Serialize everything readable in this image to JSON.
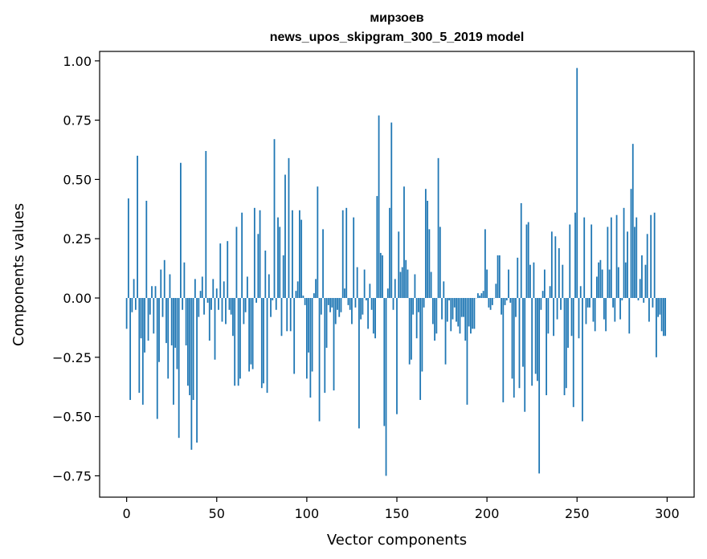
{
  "chart_data": {
    "type": "bar",
    "title": "мирзоев",
    "subtitle": "news_upos_skipgram_300_5_2019 model",
    "xlabel": "Vector components",
    "ylabel": "Components values",
    "xlim": [
      -15,
      315
    ],
    "ylim": [
      -0.84,
      1.04
    ],
    "xticks": [
      "0",
      "50",
      "100",
      "150",
      "200",
      "250",
      "300"
    ],
    "yticks": [
      "−0.75",
      "−0.50",
      "−0.25",
      "0.00",
      "0.25",
      "0.50",
      "0.75",
      "1.00"
    ],
    "grid": false,
    "bar_color": "#1f77b4",
    "x": [
      0,
      1,
      2,
      3,
      4,
      5,
      6,
      7,
      8,
      9,
      10,
      11,
      12,
      13,
      14,
      15,
      16,
      17,
      18,
      19,
      20,
      21,
      22,
      23,
      24,
      25,
      26,
      27,
      28,
      29,
      30,
      31,
      32,
      33,
      34,
      35,
      36,
      37,
      38,
      39,
      40,
      41,
      42,
      43,
      44,
      45,
      46,
      47,
      48,
      49,
      50,
      51,
      52,
      53,
      54,
      55,
      56,
      57,
      58,
      59,
      60,
      61,
      62,
      63,
      64,
      65,
      66,
      67,
      68,
      69,
      70,
      71,
      72,
      73,
      74,
      75,
      76,
      77,
      78,
      79,
      80,
      81,
      82,
      83,
      84,
      85,
      86,
      87,
      88,
      89,
      90,
      91,
      92,
      93,
      94,
      95,
      96,
      97,
      98,
      99,
      100,
      101,
      102,
      103,
      104,
      105,
      106,
      107,
      108,
      109,
      110,
      111,
      112,
      113,
      114,
      115,
      116,
      117,
      118,
      119,
      120,
      121,
      122,
      123,
      124,
      125,
      126,
      127,
      128,
      129,
      130,
      131,
      132,
      133,
      134,
      135,
      136,
      137,
      138,
      139,
      140,
      141,
      142,
      143,
      144,
      145,
      146,
      147,
      148,
      149,
      150,
      151,
      152,
      153,
      154,
      155,
      156,
      157,
      158,
      159,
      160,
      161,
      162,
      163,
      164,
      165,
      166,
      167,
      168,
      169,
      170,
      171,
      172,
      173,
      174,
      175,
      176,
      177,
      178,
      179,
      180,
      181,
      182,
      183,
      184,
      185,
      186,
      187,
      188,
      189,
      190,
      191,
      192,
      193,
      194,
      195,
      196,
      197,
      198,
      199,
      200,
      201,
      202,
      203,
      204,
      205,
      206,
      207,
      208,
      209,
      210,
      211,
      212,
      213,
      214,
      215,
      216,
      217,
      218,
      219,
      220,
      221,
      222,
      223,
      224,
      225,
      226,
      227,
      228,
      229,
      230,
      231,
      232,
      233,
      234,
      235,
      236,
      237,
      238,
      239,
      240,
      241,
      242,
      243,
      244,
      245,
      246,
      247,
      248,
      249,
      250,
      251,
      252,
      253,
      254,
      255,
      256,
      257,
      258,
      259,
      260,
      261,
      262,
      263,
      264,
      265,
      266,
      267,
      268,
      269,
      270,
      271,
      272,
      273,
      274,
      275,
      276,
      277,
      278,
      279,
      280,
      281,
      282,
      283,
      284,
      285,
      286,
      287,
      288,
      289,
      290,
      291,
      292,
      293,
      294,
      295,
      296,
      297,
      298,
      299
    ],
    "values": [
      -0.13,
      0.42,
      -0.43,
      -0.06,
      0.08,
      -0.05,
      0.6,
      -0.4,
      -0.17,
      -0.45,
      -0.23,
      0.41,
      -0.18,
      -0.07,
      0.05,
      -0.15,
      0.05,
      -0.51,
      -0.27,
      0.12,
      -0.08,
      0.16,
      -0.19,
      -0.34,
      0.1,
      -0.2,
      -0.45,
      -0.21,
      -0.3,
      -0.59,
      0.57,
      -0.05,
      0.15,
      -0.2,
      -0.37,
      -0.41,
      -0.64,
      -0.43,
      0.08,
      -0.61,
      -0.08,
      0.03,
      0.09,
      -0.07,
      0.62,
      -0.02,
      -0.18,
      -0.05,
      0.08,
      -0.26,
      0.04,
      -0.05,
      0.23,
      -0.1,
      0.07,
      -0.11,
      0.24,
      -0.05,
      -0.07,
      -0.16,
      -0.37,
      0.3,
      -0.37,
      -0.34,
      0.36,
      -0.11,
      -0.06,
      0.09,
      -0.31,
      -0.28,
      -0.3,
      0.38,
      -0.02,
      0.27,
      0.37,
      -0.38,
      -0.36,
      0.2,
      -0.4,
      0.1,
      -0.08,
      -0.01,
      0.67,
      -0.05,
      0.34,
      0.3,
      -0.16,
      0.18,
      0.52,
      -0.14,
      0.59,
      -0.14,
      0.37,
      -0.32,
      0.03,
      0.07,
      0.37,
      0.33,
      0.01,
      -0.03,
      -0.34,
      -0.23,
      -0.42,
      -0.31,
      0.02,
      0.08,
      0.47,
      -0.52,
      -0.07,
      0.29,
      -0.4,
      -0.21,
      -0.03,
      -0.06,
      -0.04,
      -0.39,
      -0.11,
      -0.05,
      -0.08,
      -0.06,
      0.37,
      0.04,
      0.38,
      -0.03,
      -0.05,
      -0.11,
      0.34,
      -0.04,
      0.13,
      -0.55,
      -0.09,
      -0.07,
      0.12,
      -0.01,
      -0.13,
      0.06,
      -0.05,
      -0.15,
      -0.17,
      0.43,
      0.77,
      0.19,
      0.18,
      -0.54,
      -0.75,
      0.04,
      0.38,
      0.74,
      -0.05,
      0.08,
      -0.49,
      0.28,
      0.11,
      0.13,
      0.47,
      0.16,
      0.12,
      -0.28,
      -0.26,
      -0.07,
      0.1,
      -0.17,
      -0.06,
      -0.43,
      -0.31,
      -0.04,
      0.46,
      0.41,
      0.29,
      0.11,
      -0.11,
      -0.18,
      -0.15,
      0.59,
      0.3,
      -0.09,
      0.07,
      -0.28,
      -0.1,
      -0.01,
      -0.14,
      -0.09,
      -0.04,
      -0.1,
      -0.12,
      -0.15,
      -0.08,
      -0.08,
      -0.18,
      -0.45,
      -0.12,
      -0.15,
      -0.13,
      -0.13,
      0.0,
      0.02,
      0.01,
      0.02,
      0.03,
      0.29,
      0.12,
      -0.04,
      -0.05,
      -0.03,
      0.0,
      0.06,
      0.18,
      0.18,
      -0.07,
      -0.44,
      -0.03,
      -0.01,
      0.12,
      -0.02,
      -0.34,
      -0.42,
      -0.08,
      0.17,
      -0.38,
      0.4,
      -0.29,
      -0.48,
      0.31,
      0.32,
      0.14,
      -0.37,
      0.15,
      -0.32,
      -0.35,
      -0.74,
      -0.05,
      0.03,
      0.12,
      -0.41,
      -0.15,
      0.05,
      0.28,
      -0.16,
      0.26,
      -0.09,
      0.21,
      -0.05,
      0.14,
      -0.41,
      -0.38,
      -0.21,
      0.31,
      -0.16,
      -0.46,
      0.36,
      0.97,
      -0.17,
      0.05,
      -0.52,
      0.34,
      -0.11,
      -0.04,
      -0.04,
      0.31,
      -0.1,
      -0.14,
      0.09,
      0.15,
      0.16,
      0.12,
      -0.09,
      -0.14,
      0.3,
      0.12,
      0.34,
      -0.04,
      -0.1,
      0.35,
      0.13,
      -0.09,
      -0.01,
      0.38,
      0.15,
      0.28,
      -0.15,
      0.46,
      0.65,
      0.3,
      0.34,
      -0.01,
      0.08,
      0.18,
      -0.02,
      0.14,
      0.27,
      -0.1,
      0.35,
      -0.04,
      0.36,
      -0.25,
      -0.08,
      -0.07,
      -0.14,
      -0.16,
      -0.16
    ]
  }
}
